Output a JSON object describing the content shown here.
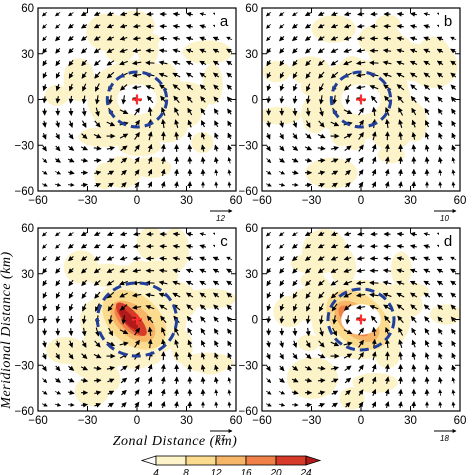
{
  "chart_data": [
    {
      "type": "heatmap",
      "panel_label": "a",
      "x_ticks": [
        "−60",
        "−30",
        "0",
        "30",
        "60"
      ],
      "y_ticks": [
        "60",
        "30",
        "0",
        "−30",
        "−60"
      ],
      "xlim": [
        -60,
        60
      ],
      "ylim": [
        -60,
        60
      ],
      "reference_vector": "12",
      "circle_radius_km": 18,
      "center": [
        0,
        0
      ],
      "max_level": 8
    },
    {
      "type": "heatmap",
      "panel_label": "b",
      "x_ticks": [
        "−60",
        "−30",
        "0",
        "30",
        "60"
      ],
      "y_ticks": [
        "60",
        "30",
        "0",
        "−30",
        "−60"
      ],
      "xlim": [
        -60,
        60
      ],
      "ylim": [
        -60,
        60
      ],
      "reference_vector": "10",
      "circle_radius_km": 18,
      "center": [
        0,
        0
      ],
      "max_level": 8
    },
    {
      "type": "heatmap",
      "panel_label": "c",
      "x_ticks": [
        "−60",
        "−30",
        "0",
        "30",
        "60"
      ],
      "y_ticks": [
        "60",
        "30",
        "0",
        "−30",
        "−60"
      ],
      "xlim": [
        -60,
        60
      ],
      "ylim": [
        -60,
        60
      ],
      "reference_vector": "27",
      "circle_radius_km": 24,
      "center": [
        0,
        0
      ],
      "max_level": 24
    },
    {
      "type": "heatmap",
      "panel_label": "d",
      "x_ticks": [
        "−60",
        "−30",
        "0",
        "30",
        "60"
      ],
      "y_ticks": [
        "60",
        "30",
        "0",
        "−30",
        "−60"
      ],
      "xlim": [
        -60,
        60
      ],
      "ylim": [
        -60,
        60
      ],
      "reference_vector": "18",
      "circle_radius_km": 20,
      "center": [
        0,
        0
      ],
      "max_level": 20
    }
  ],
  "xlabel": "Zonal Distance (km)",
  "ylabel": "Meridional Distance (km)",
  "colorbar": {
    "levels": [
      "4",
      "8",
      "12",
      "16",
      "20",
      "24"
    ],
    "colors": [
      "#ffffff",
      "#fdf3c8",
      "#fbdc8f",
      "#f7b567",
      "#ef8048",
      "#d63a28",
      "#b01a1a"
    ]
  },
  "colors": {
    "circle": "#1f3f9a",
    "center_mark": "#ff2a2a"
  }
}
